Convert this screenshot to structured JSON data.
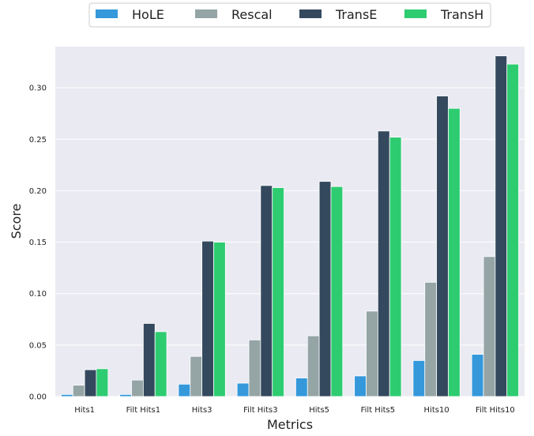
{
  "chart_data": {
    "type": "bar",
    "xlabel": "Metrics",
    "ylabel": "Score",
    "ylim": [
      0,
      0.34
    ],
    "yticks": [
      "0.00",
      "0.05",
      "0.10",
      "0.15",
      "0.20",
      "0.25",
      "0.30"
    ],
    "grid": true,
    "legend_position": "top-center",
    "categories": [
      "Hits1",
      "Filt Hits1",
      "Hits3",
      "Filt Hits3",
      "Hits5",
      "Filt Hits5",
      "Hits10",
      "Filt Hits10"
    ],
    "series": [
      {
        "name": "HoLE",
        "color": "#3498db",
        "values": [
          0.002,
          0.002,
          0.012,
          0.013,
          0.018,
          0.02,
          0.035,
          0.041
        ]
      },
      {
        "name": "Rescal",
        "color": "#95a5a6",
        "values": [
          0.011,
          0.016,
          0.039,
          0.055,
          0.059,
          0.083,
          0.111,
          0.136
        ]
      },
      {
        "name": "TransE",
        "color": "#34495e",
        "values": [
          0.026,
          0.071,
          0.151,
          0.205,
          0.209,
          0.258,
          0.292,
          0.331
        ]
      },
      {
        "name": "TransH",
        "color": "#2ecc71",
        "values": [
          0.027,
          0.063,
          0.15,
          0.203,
          0.204,
          0.252,
          0.28,
          0.323
        ]
      }
    ],
    "background": "#eaeaf2",
    "grid_color": "#ffffff"
  }
}
